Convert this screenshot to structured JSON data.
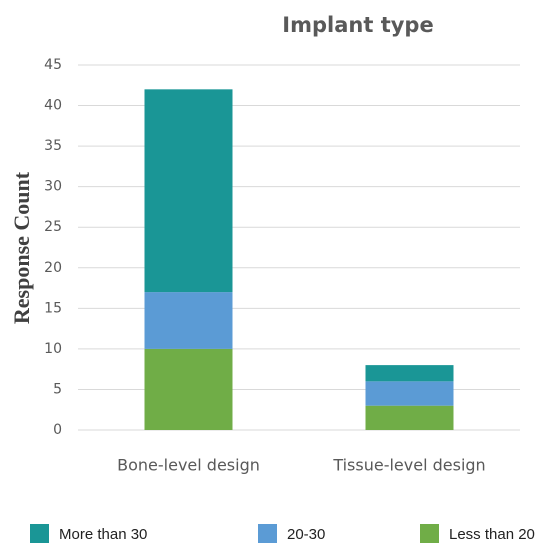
{
  "chart_data": {
    "type": "stacked_bar",
    "title": "Implant type",
    "y_label": "Response Count",
    "categories": [
      "Bone-level design",
      "Tissue-level design"
    ],
    "series": [
      {
        "name": "More than 30",
        "color": "#1a9696",
        "values": [
          25,
          2
        ]
      },
      {
        "name": "20-30",
        "color": "#5b9bd5",
        "values": [
          7,
          3
        ]
      },
      {
        "name": "Less than 20",
        "color": "#70ad47",
        "values": [
          10,
          3
        ]
      }
    ],
    "ylim": [
      0,
      45
    ],
    "yticks": [
      0,
      5,
      10,
      15,
      20,
      25,
      30,
      35,
      40,
      45
    ],
    "grid": true,
    "legend": "bottom"
  }
}
